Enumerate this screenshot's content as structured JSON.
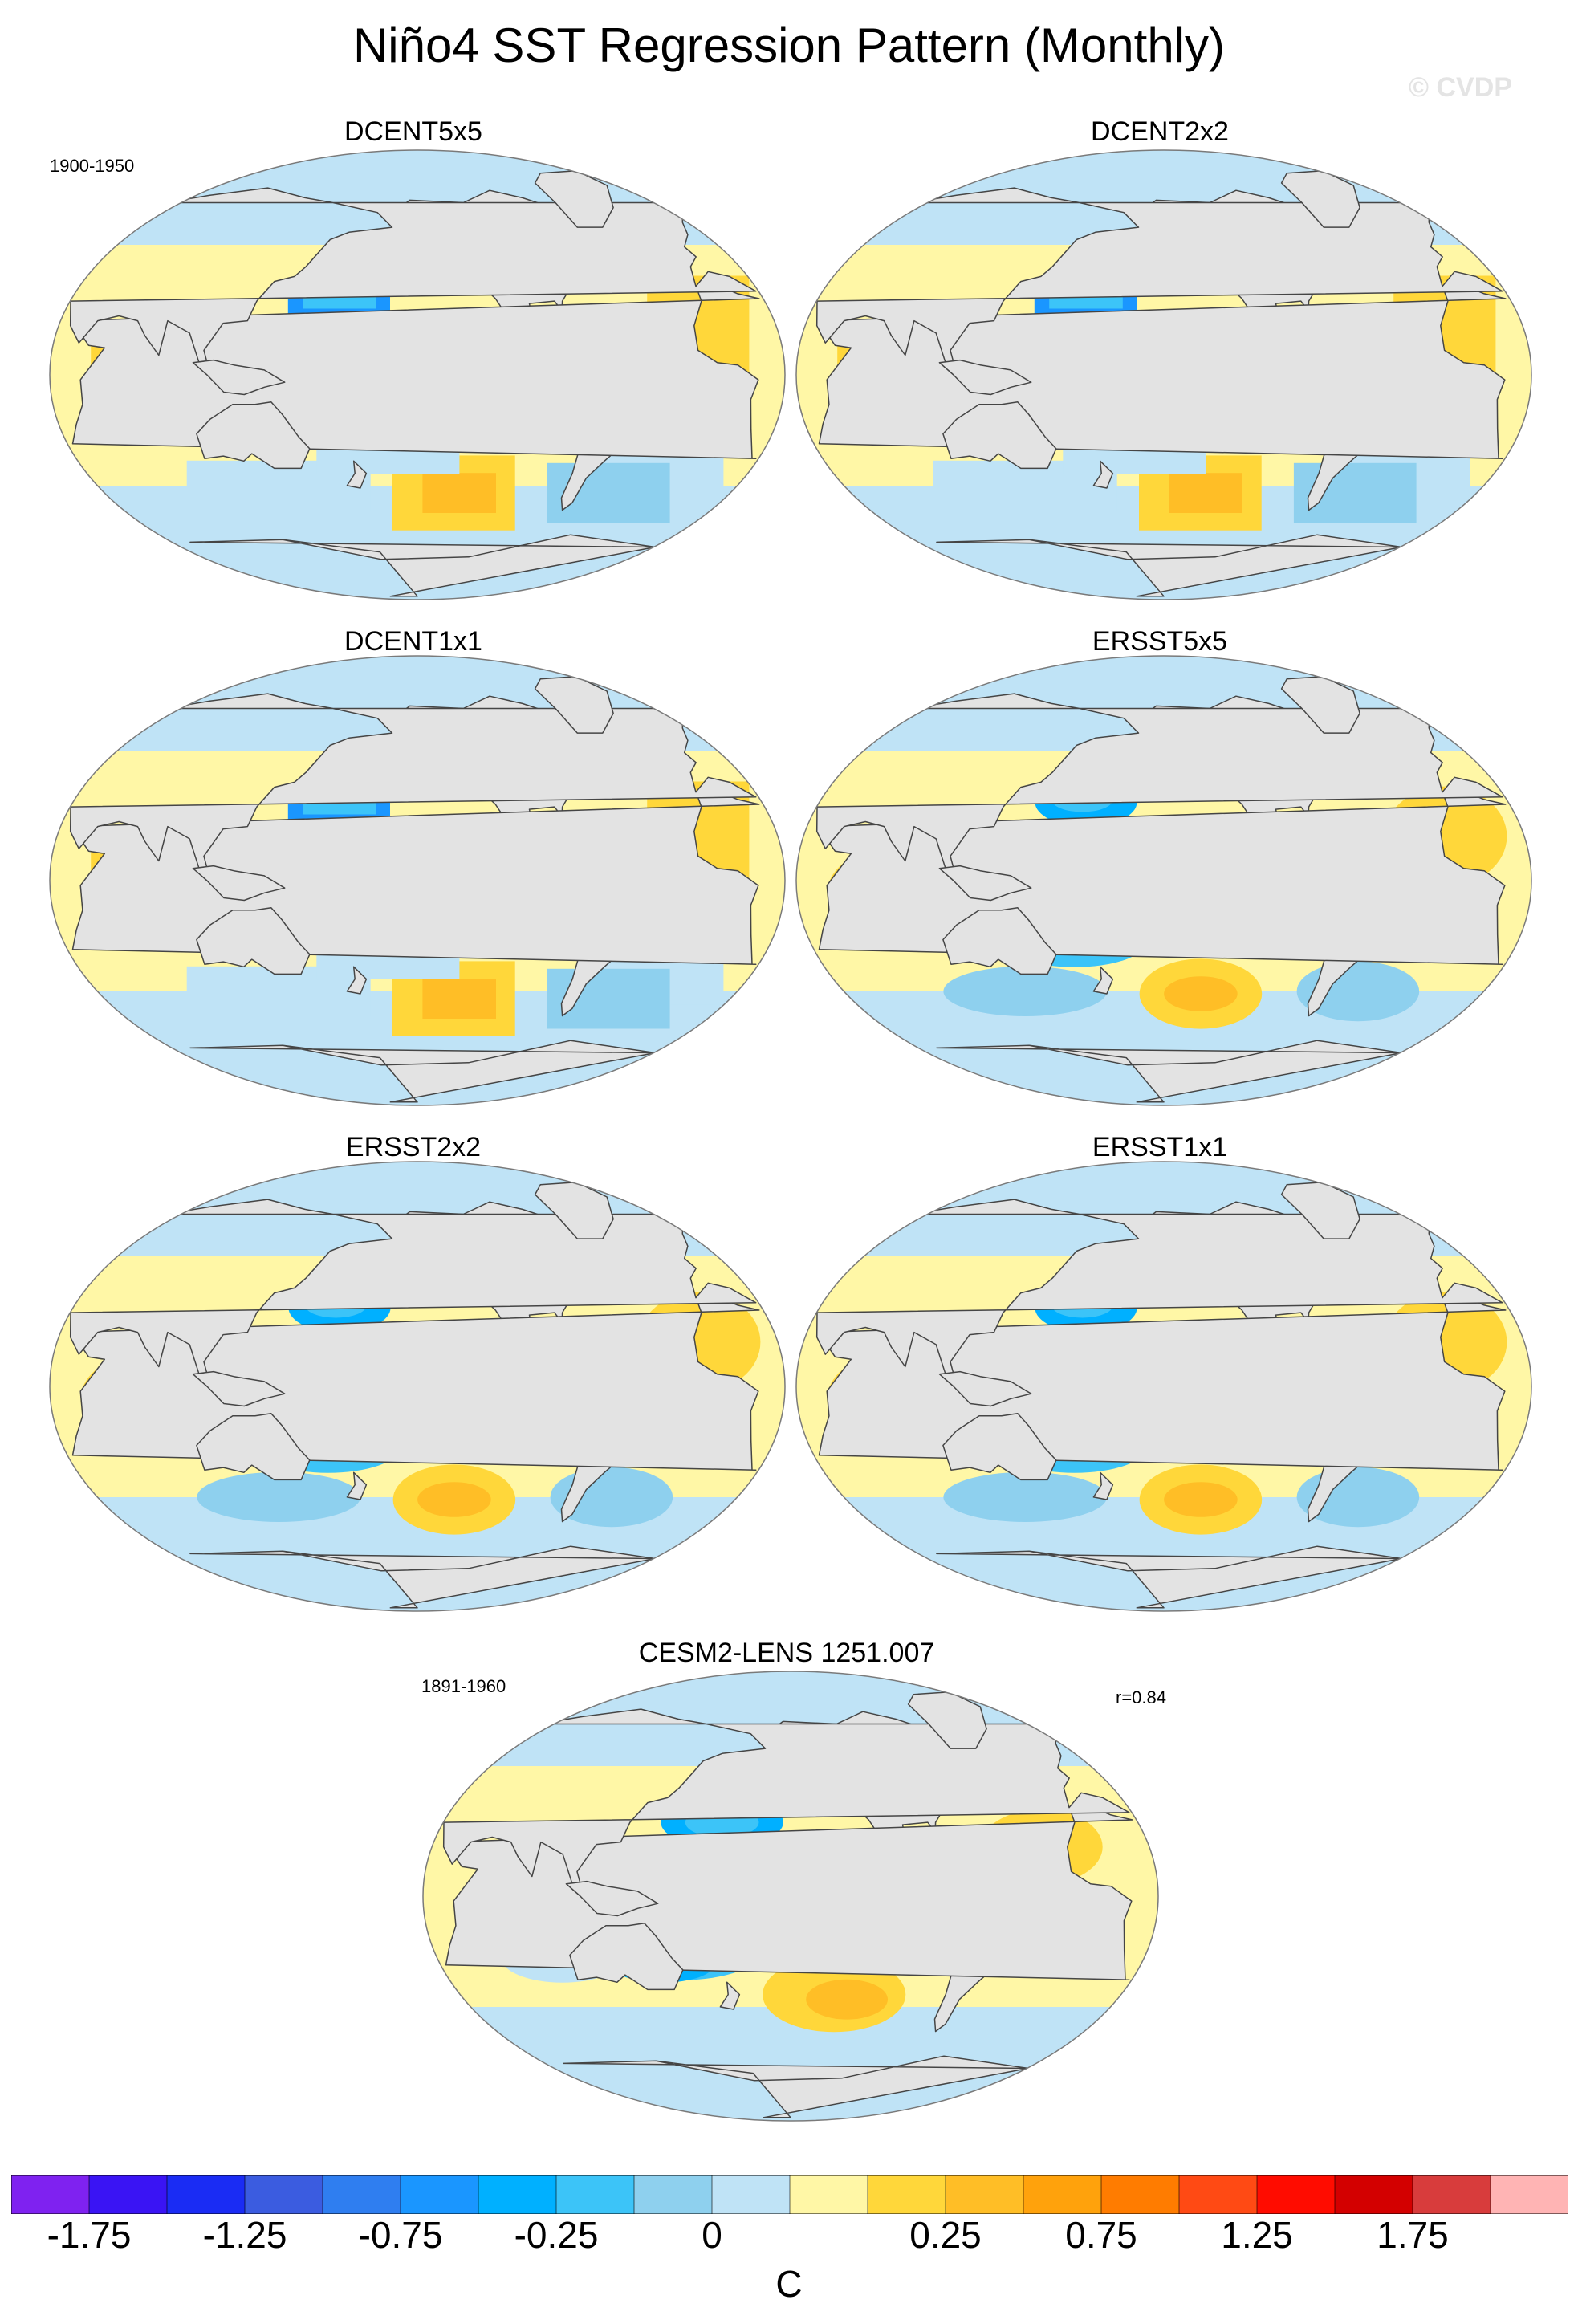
{
  "title": "Niño4 SST Regression Pattern (Monthly)",
  "watermark": "© CVDP",
  "panels": [
    {
      "name": "DCENT5x5",
      "period": "1900-1950",
      "stat": ""
    },
    {
      "name": "DCENT2x2",
      "period": "",
      "stat": ""
    },
    {
      "name": "DCENT1x1",
      "period": "",
      "stat": ""
    },
    {
      "name": "ERSST5x5",
      "period": "",
      "stat": ""
    },
    {
      "name": "ERSST2x2",
      "period": "",
      "stat": ""
    },
    {
      "name": "ERSST1x1",
      "period": "",
      "stat": ""
    },
    {
      "name": "CESM2-LENS 1251.007",
      "period": "1891-1960",
      "stat": "r=0.84"
    }
  ],
  "colorbar": {
    "unit": "C",
    "tick_labels": [
      "-1.75",
      "-1.25",
      "-0.75",
      "-0.25",
      "0",
      "0.25",
      "0.75",
      "1.25",
      "1.75"
    ],
    "colors": [
      "#7f22f0",
      "#3a14f4",
      "#1a2cf4",
      "#3b5ce0",
      "#2f7ef0",
      "#1a96ff",
      "#00b0ff",
      "#3cc4f8",
      "#8ed0ee",
      "#bfe3f6",
      "#fff7a6",
      "#ffd73a",
      "#ffbe26",
      "#ffa20c",
      "#ff7c00",
      "#ff4a14",
      "#ff0c00",
      "#d30000",
      "#d83c3c",
      "#ffb4b4"
    ]
  },
  "colors": {
    "land": "#e3e3e3",
    "coast": "#454545",
    "neutral_pos": "#fff7a6",
    "neutral_neg": "#bfe3f6"
  }
}
